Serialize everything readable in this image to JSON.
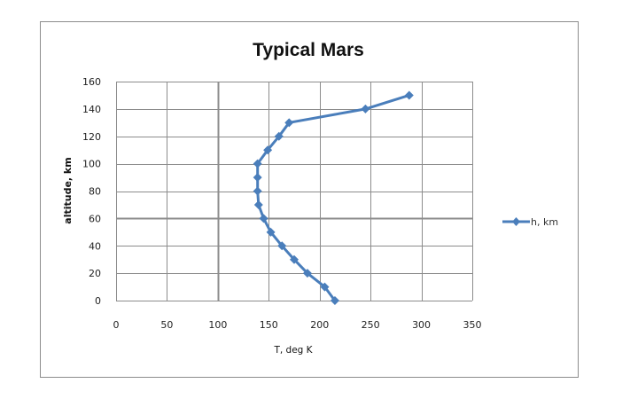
{
  "chart_data": {
    "type": "line",
    "title": "Typical Mars",
    "xlabel": "T, deg K",
    "ylabel": "altitude,  km",
    "xlim": [
      0,
      350
    ],
    "ylim": [
      0,
      160
    ],
    "xticks": [
      0,
      50,
      100,
      150,
      200,
      250,
      300,
      350
    ],
    "yticks": [
      0,
      20,
      40,
      60,
      80,
      100,
      120,
      140,
      160
    ],
    "grid": true,
    "legend_position": "right",
    "series": [
      {
        "name": "h, km",
        "color": "#4a7ebb",
        "marker": "diamond",
        "points": [
          {
            "x": 215,
            "y": 0
          },
          {
            "x": 205,
            "y": 10
          },
          {
            "x": 188,
            "y": 20
          },
          {
            "x": 175,
            "y": 30
          },
          {
            "x": 163,
            "y": 40
          },
          {
            "x": 152,
            "y": 50
          },
          {
            "x": 145,
            "y": 60
          },
          {
            "x": 140,
            "y": 70
          },
          {
            "x": 139,
            "y": 80
          },
          {
            "x": 139,
            "y": 90
          },
          {
            "x": 139,
            "y": 100
          },
          {
            "x": 149,
            "y": 110
          },
          {
            "x": 160,
            "y": 120
          },
          {
            "x": 170,
            "y": 130
          },
          {
            "x": 245,
            "y": 140
          },
          {
            "x": 288,
            "y": 150
          }
        ]
      }
    ]
  },
  "colors": {
    "series": "#4a7ebb",
    "grid": "#8c8c8c",
    "border": "#8c8c8c"
  }
}
